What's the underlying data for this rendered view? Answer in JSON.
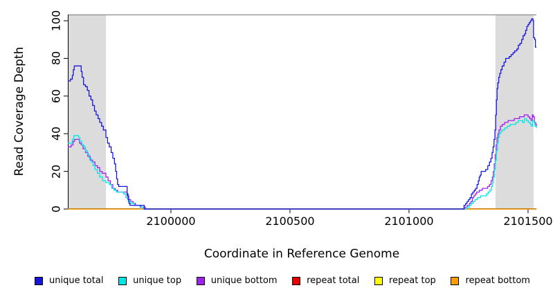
{
  "chart_data": {
    "type": "line",
    "title": "",
    "xlabel": "Coordinate in Reference Genome",
    "ylabel": "Read Coverage Depth",
    "xlim": [
      2099567,
      2101535
    ],
    "ylim": [
      0,
      103.3
    ],
    "grid": false,
    "legend_position": "bottom",
    "band_color": "#dcdcdc",
    "shaded_regions": [
      {
        "from": 2099567,
        "to": 2099727
      },
      {
        "from": 2101363,
        "to": 2101523
      }
    ],
    "xticks": [
      {
        "value": 2100000,
        "label": "2100000"
      },
      {
        "value": 2100500,
        "label": "2100500"
      },
      {
        "value": 2101000,
        "label": "2101000"
      },
      {
        "value": 2101500,
        "label": "2101500"
      }
    ],
    "yticks": [
      {
        "value": 0,
        "label": "0"
      },
      {
        "value": 20,
        "label": "20"
      },
      {
        "value": 40,
        "label": "40"
      },
      {
        "value": 60,
        "label": "60"
      },
      {
        "value": 80,
        "label": "80"
      },
      {
        "value": 100,
        "label": "100"
      }
    ],
    "draw_order": [
      "repeat total",
      "repeat top",
      "repeat bottom",
      "unique bottom",
      "unique top",
      "unique total"
    ],
    "series": [
      {
        "name": "unique total",
        "color": "#1515dd",
        "points": [
          [
            2099567,
            68
          ],
          [
            2099578,
            69
          ],
          [
            2099586,
            71
          ],
          [
            2099590,
            74
          ],
          [
            2099594,
            76
          ],
          [
            2099618,
            76
          ],
          [
            2099623,
            73
          ],
          [
            2099627,
            70
          ],
          [
            2099633,
            66
          ],
          [
            2099641,
            65
          ],
          [
            2099649,
            63
          ],
          [
            2099656,
            60
          ],
          [
            2099664,
            58
          ],
          [
            2099671,
            55
          ],
          [
            2099679,
            52
          ],
          [
            2099686,
            50
          ],
          [
            2099694,
            48
          ],
          [
            2099701,
            46
          ],
          [
            2099709,
            44
          ],
          [
            2099716,
            42
          ],
          [
            2099727,
            38
          ],
          [
            2099734,
            35
          ],
          [
            2099741,
            33
          ],
          [
            2099749,
            30
          ],
          [
            2099756,
            27
          ],
          [
            2099763,
            24
          ],
          [
            2099768,
            20
          ],
          [
            2099772,
            16
          ],
          [
            2099776,
            13
          ],
          [
            2099781,
            12
          ],
          [
            2099811,
            12
          ],
          [
            2099816,
            8
          ],
          [
            2099820,
            5
          ],
          [
            2099824,
            3
          ],
          [
            2099828,
            2
          ],
          [
            2099884,
            2
          ],
          [
            2099888,
            0
          ],
          [
            2101231,
            2
          ],
          [
            2101238,
            3
          ],
          [
            2101244,
            4
          ],
          [
            2101250,
            5
          ],
          [
            2101256,
            6
          ],
          [
            2101262,
            8
          ],
          [
            2101268,
            9
          ],
          [
            2101274,
            10
          ],
          [
            2101280,
            11
          ],
          [
            2101286,
            13
          ],
          [
            2101291,
            15
          ],
          [
            2101295,
            17
          ],
          [
            2101299,
            18
          ],
          [
            2101303,
            20
          ],
          [
            2101322,
            21
          ],
          [
            2101331,
            23
          ],
          [
            2101338,
            25
          ],
          [
            2101344,
            27
          ],
          [
            2101349,
            30
          ],
          [
            2101353,
            33
          ],
          [
            2101357,
            37
          ],
          [
            2101361,
            42
          ],
          [
            2101364,
            50
          ],
          [
            2101367,
            58
          ],
          [
            2101370,
            64
          ],
          [
            2101373,
            67
          ],
          [
            2101377,
            70
          ],
          [
            2101381,
            72
          ],
          [
            2101386,
            74
          ],
          [
            2101391,
            76
          ],
          [
            2101399,
            78
          ],
          [
            2101406,
            80
          ],
          [
            2101421,
            81
          ],
          [
            2101429,
            82
          ],
          [
            2101437,
            83
          ],
          [
            2101444,
            84
          ],
          [
            2101453,
            85
          ],
          [
            2101459,
            87
          ],
          [
            2101466,
            88
          ],
          [
            2101473,
            90
          ],
          [
            2101479,
            92
          ],
          [
            2101485,
            93
          ],
          [
            2101490,
            95
          ],
          [
            2101495,
            97
          ],
          [
            2101500,
            98
          ],
          [
            2101505,
            99
          ],
          [
            2101510,
            100
          ],
          [
            2101515,
            101
          ],
          [
            2101521,
            100
          ],
          [
            2101523,
            91
          ],
          [
            2101528,
            90
          ],
          [
            2101531,
            86
          ],
          [
            2101535,
            86
          ]
        ]
      },
      {
        "name": "unique top",
        "color": "#00e6e6",
        "points": [
          [
            2099567,
            35
          ],
          [
            2099580,
            35
          ],
          [
            2099586,
            37
          ],
          [
            2099592,
            39
          ],
          [
            2099606,
            39
          ],
          [
            2099612,
            38
          ],
          [
            2099618,
            36
          ],
          [
            2099626,
            34
          ],
          [
            2099634,
            33
          ],
          [
            2099641,
            31
          ],
          [
            2099649,
            29
          ],
          [
            2099657,
            27
          ],
          [
            2099665,
            25
          ],
          [
            2099673,
            23
          ],
          [
            2099681,
            21
          ],
          [
            2099691,
            19
          ],
          [
            2099701,
            17
          ],
          [
            2099713,
            15
          ],
          [
            2099727,
            14
          ],
          [
            2099741,
            13
          ],
          [
            2099751,
            11
          ],
          [
            2099761,
            10
          ],
          [
            2099771,
            9
          ],
          [
            2099801,
            8
          ],
          [
            2099811,
            6
          ],
          [
            2099821,
            4
          ],
          [
            2099831,
            3
          ],
          [
            2099846,
            2
          ],
          [
            2099876,
            1
          ],
          [
            2099883,
            0
          ],
          [
            2101243,
            1
          ],
          [
            2101253,
            2
          ],
          [
            2101261,
            3
          ],
          [
            2101269,
            4
          ],
          [
            2101277,
            5
          ],
          [
            2101287,
            6
          ],
          [
            2101300,
            7
          ],
          [
            2101315,
            7
          ],
          [
            2101325,
            8
          ],
          [
            2101333,
            9
          ],
          [
            2101340,
            10
          ],
          [
            2101346,
            12
          ],
          [
            2101351,
            14
          ],
          [
            2101355,
            17
          ],
          [
            2101359,
            21
          ],
          [
            2101363,
            26
          ],
          [
            2101367,
            31
          ],
          [
            2101371,
            35
          ],
          [
            2101375,
            38
          ],
          [
            2101379,
            40
          ],
          [
            2101385,
            41
          ],
          [
            2101391,
            42
          ],
          [
            2101401,
            43
          ],
          [
            2101413,
            44
          ],
          [
            2101425,
            45
          ],
          [
            2101437,
            45
          ],
          [
            2101449,
            46
          ],
          [
            2101459,
            47
          ],
          [
            2101469,
            47
          ],
          [
            2101477,
            46
          ],
          [
            2101485,
            48
          ],
          [
            2101493,
            47
          ],
          [
            2101501,
            46
          ],
          [
            2101509,
            45
          ],
          [
            2101514,
            44
          ],
          [
            2101519,
            47
          ],
          [
            2101525,
            46
          ],
          [
            2101529,
            44
          ],
          [
            2101535,
            43
          ]
        ]
      },
      {
        "name": "unique bottom",
        "color": "#a020f0",
        "points": [
          [
            2099567,
            33
          ],
          [
            2099581,
            34
          ],
          [
            2099589,
            36
          ],
          [
            2099596,
            37
          ],
          [
            2099609,
            37
          ],
          [
            2099616,
            35
          ],
          [
            2099623,
            34
          ],
          [
            2099631,
            32
          ],
          [
            2099641,
            30
          ],
          [
            2099651,
            28
          ],
          [
            2099661,
            26
          ],
          [
            2099671,
            25
          ],
          [
            2099681,
            23
          ],
          [
            2099691,
            22
          ],
          [
            2099701,
            20
          ],
          [
            2099711,
            19
          ],
          [
            2099727,
            17
          ],
          [
            2099736,
            15
          ],
          [
            2099746,
            13
          ],
          [
            2099756,
            11
          ],
          [
            2099766,
            10
          ],
          [
            2099776,
            9
          ],
          [
            2099806,
            9
          ],
          [
            2099816,
            7
          ],
          [
            2099823,
            5
          ],
          [
            2099831,
            4
          ],
          [
            2099841,
            3
          ],
          [
            2099851,
            2
          ],
          [
            2099871,
            1
          ],
          [
            2099893,
            0
          ],
          [
            2101235,
            1
          ],
          [
            2101245,
            2
          ],
          [
            2101254,
            3
          ],
          [
            2101260,
            4
          ],
          [
            2101266,
            6
          ],
          [
            2101272,
            7
          ],
          [
            2101278,
            8
          ],
          [
            2101284,
            9
          ],
          [
            2101296,
            10
          ],
          [
            2101308,
            11
          ],
          [
            2101320,
            11
          ],
          [
            2101330,
            12
          ],
          [
            2101338,
            13
          ],
          [
            2101345,
            15
          ],
          [
            2101350,
            17
          ],
          [
            2101354,
            20
          ],
          [
            2101358,
            24
          ],
          [
            2101362,
            29
          ],
          [
            2101366,
            34
          ],
          [
            2101370,
            38
          ],
          [
            2101374,
            40
          ],
          [
            2101378,
            42
          ],
          [
            2101384,
            44
          ],
          [
            2101392,
            45
          ],
          [
            2101402,
            46
          ],
          [
            2101416,
            47
          ],
          [
            2101430,
            47
          ],
          [
            2101442,
            48
          ],
          [
            2101454,
            48
          ],
          [
            2101464,
            49
          ],
          [
            2101474,
            49
          ],
          [
            2101484,
            50
          ],
          [
            2101494,
            50
          ],
          [
            2101500,
            49
          ],
          [
            2101507,
            48
          ],
          [
            2101513,
            47
          ],
          [
            2101518,
            50
          ],
          [
            2101522,
            49
          ],
          [
            2101527,
            46
          ],
          [
            2101532,
            45
          ],
          [
            2101535,
            44
          ]
        ]
      },
      {
        "name": "repeat total",
        "color": "#e60000",
        "points": [
          [
            2099567,
            0
          ],
          [
            2101535,
            0
          ]
        ]
      },
      {
        "name": "repeat top",
        "color": "#ffff00",
        "points": [
          [
            2099567,
            0
          ],
          [
            2101535,
            0
          ]
        ]
      },
      {
        "name": "repeat bottom",
        "color": "#ff9d00",
        "points": [
          [
            2099567,
            0
          ],
          [
            2101535,
            0
          ]
        ]
      }
    ]
  }
}
